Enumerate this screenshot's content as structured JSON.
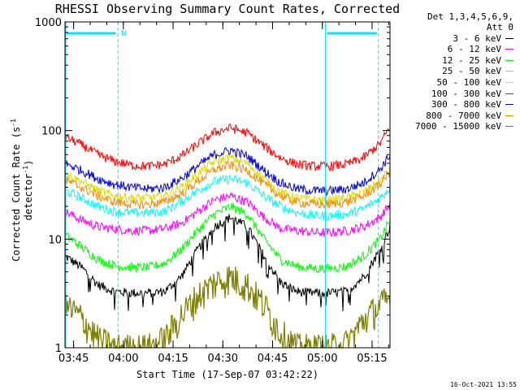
{
  "chart_data": {
    "type": "line",
    "title": "RHESSI Observing Summary Count Rates, Corrected",
    "xlabel": "Start Time (17-Sep-07 03:42:22)",
    "ylabel_main": "Corrected Count Rate (s",
    "ylabel_sup1": "-1",
    "ylabel_mid": " detector",
    "ylabel_sup2": "-1",
    "ylabel_end": ")",
    "yscale": "log",
    "ylim": [
      1,
      1000
    ],
    "y_ticks": [
      "1",
      "10",
      "100",
      "1000"
    ],
    "xlim_minutes": [
      0,
      98
    ],
    "x_ticks": [
      "03:45",
      "04:00",
      "04:15",
      "04:30",
      "04:45",
      "05:00",
      "05:15"
    ],
    "x_tick_minutes": [
      2.6,
      17.6,
      32.6,
      47.6,
      62.6,
      77.6,
      92.6
    ],
    "legend_header": [
      "Det 1,3,4,5,6,9,",
      "Att 0"
    ],
    "series": [
      {
        "name": "3 - 6 keV",
        "color": "#000000",
        "points": [
          [
            0,
            7
          ],
          [
            5,
            5.5
          ],
          [
            10,
            3.8
          ],
          [
            15,
            3.3
          ],
          [
            20,
            3.2
          ],
          [
            25,
            3.2
          ],
          [
            30,
            3.3
          ],
          [
            35,
            4.5
          ],
          [
            40,
            8
          ],
          [
            45,
            13
          ],
          [
            50,
            16
          ],
          [
            55,
            13
          ],
          [
            60,
            7
          ],
          [
            65,
            4
          ],
          [
            70,
            3.3
          ],
          [
            75,
            3.2
          ],
          [
            80,
            3.2
          ],
          [
            85,
            3.3
          ],
          [
            90,
            4.5
          ],
          [
            95,
            8
          ],
          [
            98,
            13
          ]
        ]
      },
      {
        "name": "6 - 12 keV",
        "color": "#ff00ff",
        "points": [
          [
            0,
            18
          ],
          [
            5,
            15
          ],
          [
            10,
            13
          ],
          [
            15,
            12.5
          ],
          [
            20,
            12
          ],
          [
            25,
            12
          ],
          [
            30,
            12.5
          ],
          [
            35,
            14
          ],
          [
            40,
            18
          ],
          [
            45,
            23
          ],
          [
            50,
            25
          ],
          [
            55,
            22
          ],
          [
            60,
            16
          ],
          [
            65,
            12.5
          ],
          [
            70,
            12
          ],
          [
            75,
            11.5
          ],
          [
            80,
            11.5
          ],
          [
            85,
            12
          ],
          [
            90,
            13
          ],
          [
            95,
            16
          ],
          [
            98,
            21
          ]
        ]
      },
      {
        "name": "12 - 25 keV",
        "color": "#00ff00",
        "points": [
          [
            0,
            11
          ],
          [
            5,
            8.5
          ],
          [
            10,
            6.5
          ],
          [
            15,
            5.7
          ],
          [
            20,
            5.5
          ],
          [
            25,
            5.5
          ],
          [
            30,
            6
          ],
          [
            35,
            8
          ],
          [
            40,
            12
          ],
          [
            45,
            17
          ],
          [
            50,
            20
          ],
          [
            55,
            17
          ],
          [
            60,
            10
          ],
          [
            65,
            6.5
          ],
          [
            70,
            5.6
          ],
          [
            75,
            5.4
          ],
          [
            80,
            5.4
          ],
          [
            85,
            5.6
          ],
          [
            90,
            7
          ],
          [
            95,
            10
          ],
          [
            98,
            15
          ]
        ]
      },
      {
        "name": "25 - 50 keV",
        "color": "#00ffff",
        "points": [
          [
            0,
            28
          ],
          [
            5,
            24
          ],
          [
            10,
            20
          ],
          [
            15,
            18
          ],
          [
            20,
            17.5
          ],
          [
            25,
            17.5
          ],
          [
            30,
            18
          ],
          [
            35,
            22
          ],
          [
            40,
            28
          ],
          [
            45,
            34
          ],
          [
            50,
            36
          ],
          [
            55,
            33
          ],
          [
            60,
            25
          ],
          [
            65,
            20
          ],
          [
            70,
            17.5
          ],
          [
            75,
            16.5
          ],
          [
            80,
            16.5
          ],
          [
            85,
            17
          ],
          [
            90,
            19
          ],
          [
            95,
            24
          ],
          [
            98,
            30
          ]
        ]
      },
      {
        "name": "50 - 100 keV",
        "color": "#dddd00",
        "points": [
          [
            0,
            40
          ],
          [
            5,
            34
          ],
          [
            10,
            28
          ],
          [
            15,
            25
          ],
          [
            20,
            24
          ],
          [
            25,
            24
          ],
          [
            30,
            25
          ],
          [
            35,
            30
          ],
          [
            40,
            40
          ],
          [
            45,
            52
          ],
          [
            50,
            56
          ],
          [
            55,
            50
          ],
          [
            60,
            36
          ],
          [
            65,
            27
          ],
          [
            70,
            24
          ],
          [
            75,
            23
          ],
          [
            80,
            23
          ],
          [
            85,
            24
          ],
          [
            90,
            27
          ],
          [
            95,
            34
          ],
          [
            98,
            44
          ]
        ]
      },
      {
        "name": "100 - 300 keV",
        "color": "#ff0000",
        "points": [
          [
            0,
            88
          ],
          [
            5,
            74
          ],
          [
            10,
            60
          ],
          [
            15,
            52
          ],
          [
            20,
            48
          ],
          [
            25,
            47
          ],
          [
            30,
            49
          ],
          [
            35,
            58
          ],
          [
            40,
            75
          ],
          [
            45,
            96
          ],
          [
            50,
            106
          ],
          [
            55,
            95
          ],
          [
            60,
            72
          ],
          [
            65,
            56
          ],
          [
            70,
            49
          ],
          [
            75,
            47
          ],
          [
            80,
            47
          ],
          [
            85,
            49
          ],
          [
            90,
            56
          ],
          [
            95,
            76
          ],
          [
            98,
            108
          ]
        ]
      },
      {
        "name": "300 - 800 keV",
        "color": "#0000dd",
        "points": [
          [
            0,
            50
          ],
          [
            5,
            43
          ],
          [
            10,
            36
          ],
          [
            15,
            32
          ],
          [
            20,
            30
          ],
          [
            25,
            29
          ],
          [
            30,
            30
          ],
          [
            35,
            36
          ],
          [
            40,
            47
          ],
          [
            45,
            60
          ],
          [
            50,
            66
          ],
          [
            55,
            58
          ],
          [
            60,
            43
          ],
          [
            65,
            33
          ],
          [
            70,
            29
          ],
          [
            75,
            28
          ],
          [
            80,
            28
          ],
          [
            85,
            29
          ],
          [
            90,
            33
          ],
          [
            95,
            44
          ],
          [
            98,
            60
          ]
        ]
      },
      {
        "name": "800 - 7000 keV",
        "color": "#ff8800",
        "points": [
          [
            0,
            35
          ],
          [
            5,
            30
          ],
          [
            10,
            25
          ],
          [
            15,
            22
          ],
          [
            20,
            21
          ],
          [
            25,
            21
          ],
          [
            30,
            22
          ],
          [
            35,
            26
          ],
          [
            40,
            34
          ],
          [
            45,
            44
          ],
          [
            50,
            48
          ],
          [
            55,
            43
          ],
          [
            60,
            32
          ],
          [
            65,
            25
          ],
          [
            70,
            22
          ],
          [
            75,
            21
          ],
          [
            80,
            21
          ],
          [
            85,
            22
          ],
          [
            90,
            25
          ],
          [
            95,
            32
          ],
          [
            98,
            42
          ]
        ]
      },
      {
        "name": "7000 - 15000 keV",
        "color": "#808000",
        "points": [
          [
            0,
            2.5
          ],
          [
            5,
            1.9
          ],
          [
            10,
            1.2
          ],
          [
            15,
            1
          ],
          [
            20,
            1
          ],
          [
            25,
            1
          ],
          [
            30,
            1.2
          ],
          [
            35,
            2
          ],
          [
            40,
            3
          ],
          [
            45,
            4
          ],
          [
            50,
            4.5
          ],
          [
            55,
            3.8
          ],
          [
            60,
            2.5
          ],
          [
            65,
            1.4
          ],
          [
            70,
            1
          ],
          [
            75,
            1
          ],
          [
            80,
            1
          ],
          [
            85,
            1.1
          ],
          [
            90,
            1.8
          ],
          [
            95,
            2.5
          ],
          [
            98,
            2.8
          ]
        ]
      }
    ],
    "markers": {
      "flag_label": "N",
      "night_start_solid_minutes": 0,
      "night_end_dashed_minutes": 16,
      "day_start_solid_minutes": 78.5,
      "day_end_dashed_minutes": 94.5,
      "marker_color": "#00e5ff"
    },
    "grid": false,
    "legend_position": "right, outside plot"
  },
  "footer": {
    "timestamp": "16-Oct-2021 13:55"
  }
}
